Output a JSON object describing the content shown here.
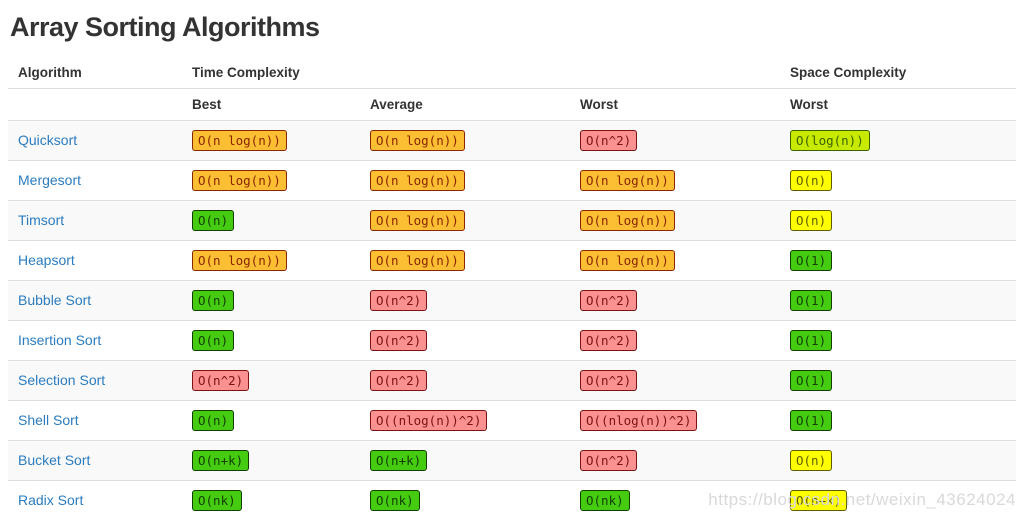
{
  "page": {
    "title": "Array Sorting Algorithms",
    "watermark": "https://blog.csdn.net/weixin_43624024"
  },
  "colors": {
    "title_text": "#333333",
    "link_blue": "#2b7cc0",
    "row_stripe": "#f9f9f9",
    "row_border": "#dddddd",
    "watermark_text": "#d9d9d9",
    "badges": {
      "orange": {
        "background": "#fcbe32",
        "border": "#a02c00",
        "text": "#8a2500"
      },
      "red": {
        "background": "#fb9191",
        "border": "#bb1c1c",
        "text": "#7c1212"
      },
      "yellow": {
        "background": "#ffff00",
        "border": "#9c9c00",
        "text": "#5e5e00"
      },
      "yellowgreen": {
        "background": "#c8ea00",
        "border": "#4ba000",
        "text": "#3a6200"
      },
      "green": {
        "background": "#45cb10",
        "border": "#2d8a00",
        "text": "#123e00"
      }
    }
  },
  "table": {
    "group_headers": [
      {
        "label": "Algorithm"
      },
      {
        "label": "Time Complexity"
      },
      {
        "label": "Space Complexity"
      }
    ],
    "sub_headers": [
      "",
      "Best",
      "Average",
      "Worst",
      "Worst"
    ],
    "rows": [
      {
        "algorithm": "Quicksort",
        "best": {
          "text": "O(n log(n))",
          "level": "orange"
        },
        "average": {
          "text": "O(n log(n))",
          "level": "orange"
        },
        "worst": {
          "text": "O(n^2)",
          "level": "red"
        },
        "space_worst": {
          "text": "O(log(n))",
          "level": "yellowgreen"
        }
      },
      {
        "algorithm": "Mergesort",
        "best": {
          "text": "O(n log(n))",
          "level": "orange"
        },
        "average": {
          "text": "O(n log(n))",
          "level": "orange"
        },
        "worst": {
          "text": "O(n log(n))",
          "level": "orange"
        },
        "space_worst": {
          "text": "O(n)",
          "level": "yellow"
        }
      },
      {
        "algorithm": "Timsort",
        "best": {
          "text": "O(n)",
          "level": "green"
        },
        "average": {
          "text": "O(n log(n))",
          "level": "orange"
        },
        "worst": {
          "text": "O(n log(n))",
          "level": "orange"
        },
        "space_worst": {
          "text": "O(n)",
          "level": "yellow"
        }
      },
      {
        "algorithm": "Heapsort",
        "best": {
          "text": "O(n log(n))",
          "level": "orange"
        },
        "average": {
          "text": "O(n log(n))",
          "level": "orange"
        },
        "worst": {
          "text": "O(n log(n))",
          "level": "orange"
        },
        "space_worst": {
          "text": "O(1)",
          "level": "green"
        }
      },
      {
        "algorithm": "Bubble Sort",
        "best": {
          "text": "O(n)",
          "level": "green"
        },
        "average": {
          "text": "O(n^2)",
          "level": "red"
        },
        "worst": {
          "text": "O(n^2)",
          "level": "red"
        },
        "space_worst": {
          "text": "O(1)",
          "level": "green"
        }
      },
      {
        "algorithm": "Insertion Sort",
        "best": {
          "text": "O(n)",
          "level": "green"
        },
        "average": {
          "text": "O(n^2)",
          "level": "red"
        },
        "worst": {
          "text": "O(n^2)",
          "level": "red"
        },
        "space_worst": {
          "text": "O(1)",
          "level": "green"
        }
      },
      {
        "algorithm": "Selection Sort",
        "best": {
          "text": "O(n^2)",
          "level": "red"
        },
        "average": {
          "text": "O(n^2)",
          "level": "red"
        },
        "worst": {
          "text": "O(n^2)",
          "level": "red"
        },
        "space_worst": {
          "text": "O(1)",
          "level": "green"
        }
      },
      {
        "algorithm": "Shell Sort",
        "best": {
          "text": "O(n)",
          "level": "green"
        },
        "average": {
          "text": "O((nlog(n))^2)",
          "level": "red"
        },
        "worst": {
          "text": "O((nlog(n))^2)",
          "level": "red"
        },
        "space_worst": {
          "text": "O(1)",
          "level": "green"
        }
      },
      {
        "algorithm": "Bucket Sort",
        "best": {
          "text": "O(n+k)",
          "level": "green"
        },
        "average": {
          "text": "O(n+k)",
          "level": "green"
        },
        "worst": {
          "text": "O(n^2)",
          "level": "red"
        },
        "space_worst": {
          "text": "O(n)",
          "level": "yellow"
        }
      },
      {
        "algorithm": "Radix Sort",
        "best": {
          "text": "O(nk)",
          "level": "green"
        },
        "average": {
          "text": "O(nk)",
          "level": "green"
        },
        "worst": {
          "text": "O(nk)",
          "level": "green"
        },
        "space_worst": {
          "text": "O(n+k)",
          "level": "yellow"
        }
      }
    ]
  }
}
